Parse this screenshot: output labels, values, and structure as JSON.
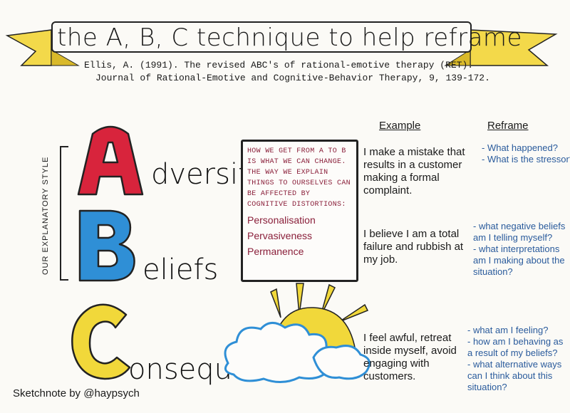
{
  "title": "the A, B, C technique to help reframe",
  "citation": {
    "line1": "Ellis, A. (1991). The revised ABC's of rational-emotive therapy (RET).",
    "line2": "Journal of Rational-Emotive and Cognitive-Behavior Therapy, 9, 139-172."
  },
  "side_label": "OUR EXPLANATORY STYLE",
  "rows": [
    {
      "word": "dversity",
      "letter": "A"
    },
    {
      "word": "eliefs",
      "letter": "B"
    },
    {
      "word": "onsequences",
      "letter": "C"
    }
  ],
  "middle_box": {
    "text": "HOW WE GET FROM A to B IS WHAT WE CAN CHANGE. THE WAY WE EXPLAIN THINGS TO OURSELVES CAN BE AFFECTED BY COGNITIVE DISTORTIONS:",
    "items": [
      "Personalisation",
      "Pervasiveness",
      "Permanence"
    ]
  },
  "headings": {
    "example": "Example",
    "reframe": "Reframe"
  },
  "examples": [
    "I make a mistake that results in a customer making a formal complaint.",
    "I believe I am a total failure and rubbish at my job.",
    "I feel awful, retreat inside myself, avoid engaging with customers."
  ],
  "reframes": [
    [
      "- What happened?",
      "- What is the stressor?"
    ],
    [
      "- what negative beliefs am I telling myself?",
      "- what interpretations am I making about the situation?"
    ],
    [
      "- what am I feeling?",
      "- how am I behaving as a result of my beliefs?",
      "- what alternative ways can I think about this situation?"
    ]
  ],
  "credit": "Sketchnote by @haypsych",
  "colors": {
    "A": "#d8243c",
    "B": "#2f8fd6",
    "C": "#f1d83a",
    "ribbon": "#f3d94a",
    "maroon": "#8a1f3a",
    "blue_text": "#2a5b9c"
  }
}
